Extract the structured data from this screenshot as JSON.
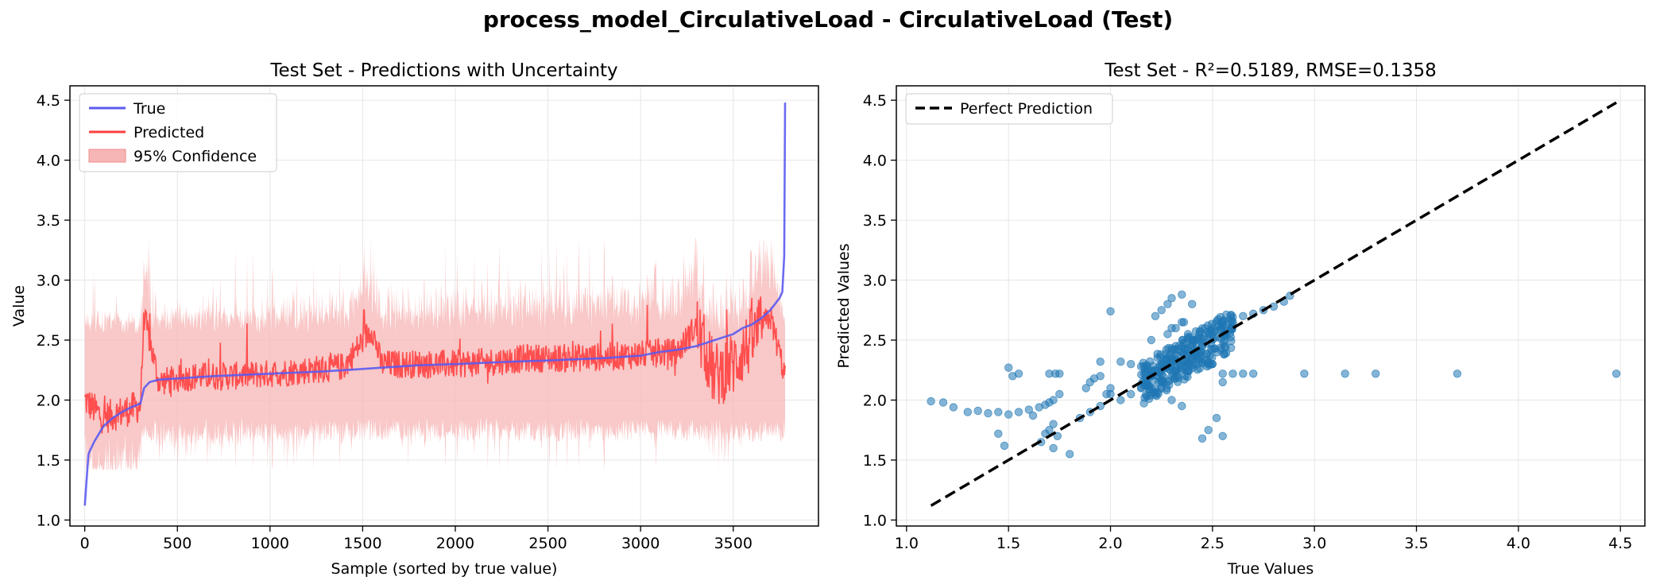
{
  "figure": {
    "suptitle": "process_model_CirculativeLoad - CirculativeLoad (Test)"
  },
  "colors": {
    "true_line": "#5b5bf0",
    "predicted_line": "#ff4040",
    "confidence_fill": "#f7b6b6",
    "scatter_points": "#1f77b4",
    "perfect_line": "#000000",
    "grid": "#e6e6e6"
  },
  "chart_data": [
    {
      "type": "line",
      "title": "Test Set - Predictions with Uncertainty",
      "xlabel": "Sample (sorted by true value)",
      "ylabel": "Value",
      "xlim": [
        -80,
        3960
      ],
      "ylim": [
        0.95,
        4.62
      ],
      "xticks": [
        0,
        500,
        1000,
        1500,
        2000,
        2500,
        3000,
        3500
      ],
      "yticks": [
        1.0,
        1.5,
        2.0,
        2.5,
        3.0,
        3.5,
        4.0,
        4.5
      ],
      "grid": true,
      "legend_position": "top-left",
      "n_samples": 3780,
      "series": [
        {
          "name": "True",
          "color": "#5b5bf0",
          "x": [
            0,
            20,
            50,
            100,
            150,
            200,
            250,
            300,
            320,
            350,
            400,
            500,
            700,
            1000,
            1300,
            1500,
            1800,
            2000,
            2300,
            2500,
            2800,
            3000,
            3100,
            3200,
            3300,
            3400,
            3500,
            3550,
            3600,
            3650,
            3700,
            3750,
            3765,
            3775,
            3780
          ],
          "values": [
            1.12,
            1.55,
            1.65,
            1.78,
            1.85,
            1.9,
            1.94,
            1.97,
            2.1,
            2.15,
            2.17,
            2.18,
            2.2,
            2.22,
            2.24,
            2.26,
            2.29,
            2.3,
            2.32,
            2.33,
            2.35,
            2.37,
            2.4,
            2.42,
            2.45,
            2.5,
            2.55,
            2.6,
            2.63,
            2.68,
            2.75,
            2.85,
            2.9,
            3.2,
            4.48
          ]
        },
        {
          "name": "Predicted",
          "color": "#ff4040",
          "x": [
            0,
            100,
            200,
            300,
            320,
            400,
            600,
            800,
            1000,
            1200,
            1400,
            1550,
            1600,
            1800,
            2000,
            2200,
            2400,
            2600,
            2800,
            3000,
            3200,
            3300,
            3400,
            3500,
            3600,
            3700,
            3780
          ],
          "values": [
            2.0,
            1.85,
            1.9,
            1.95,
            2.7,
            2.15,
            2.2,
            2.2,
            2.22,
            2.25,
            2.28,
            2.6,
            2.3,
            2.3,
            2.3,
            2.32,
            2.35,
            2.35,
            2.36,
            2.38,
            2.4,
            2.62,
            2.2,
            2.3,
            2.5,
            2.7,
            2.2
          ]
        }
      ],
      "confidence": {
        "name": "95% Confidence",
        "color": "#f7b6b6",
        "band_low_typical": 1.7,
        "band_high_typical": 2.7,
        "max": 3.35,
        "min": 1.42
      }
    },
    {
      "type": "scatter",
      "title": "Test Set - R²=0.5189, RMSE=0.1358",
      "xlabel": "True Values",
      "ylabel": "Predicted Values",
      "xlim": [
        0.95,
        4.62
      ],
      "ylim": [
        0.95,
        4.62
      ],
      "xticks": [
        1.0,
        1.5,
        2.0,
        2.5,
        3.0,
        3.5,
        4.0,
        4.5
      ],
      "yticks": [
        1.0,
        1.5,
        2.0,
        2.5,
        3.0,
        3.5,
        4.0,
        4.5
      ],
      "grid": true,
      "legend_position": "top-left",
      "reference_line": {
        "name": "Perfect Prediction",
        "x": [
          1.12,
          4.48
        ],
        "y": [
          1.12,
          4.48
        ],
        "style": "dashed",
        "color": "#000000"
      },
      "points": {
        "color": "#1f77b4",
        "x": [
          1.12,
          1.18,
          1.23,
          1.3,
          1.35,
          1.4,
          1.45,
          1.5,
          1.55,
          1.6,
          1.62,
          1.65,
          1.68,
          1.7,
          1.72,
          1.75,
          1.72,
          1.7,
          1.68,
          1.66,
          1.72,
          1.74,
          1.8,
          1.85,
          1.9,
          1.95,
          2.0,
          1.88,
          1.9,
          1.92,
          1.95,
          1.98,
          2.0,
          2.05,
          2.1,
          2.15,
          2.18,
          2.2,
          2.22,
          2.25,
          2.28,
          2.3,
          2.32,
          2.35,
          2.38,
          2.4,
          2.42,
          2.45,
          2.48,
          2.5,
          2.55,
          2.6,
          2.65,
          2.7,
          2.75,
          2.8,
          2.85,
          2.88,
          2.22,
          2.25,
          2.28,
          2.3,
          2.35,
          2.38,
          2.4,
          2.45,
          2.5,
          2.55,
          2.6,
          2.65,
          2.7,
          1.5,
          1.52,
          1.55,
          1.45,
          1.48,
          1.7,
          1.73,
          1.75,
          2.0,
          2.3,
          2.35,
          2.4,
          2.5,
          2.55,
          2.52,
          2.48,
          2.45,
          2.55,
          2.95,
          3.15,
          3.3,
          3.7,
          4.48,
          2.3,
          2.35,
          2.2,
          2.25,
          2.3,
          2.35,
          2.38,
          2.4,
          2.42,
          2.45,
          2.2,
          2.28,
          2.32,
          2.36,
          2.4,
          2.44,
          1.95,
          2.05,
          2.1,
          2.15
        ],
        "y": [
          1.99,
          1.98,
          1.94,
          1.9,
          1.91,
          1.89,
          1.9,
          1.88,
          1.9,
          1.92,
          1.87,
          1.94,
          1.96,
          1.98,
          2.0,
          2.05,
          1.8,
          1.75,
          1.72,
          1.65,
          1.6,
          1.7,
          1.55,
          1.85,
          1.9,
          1.95,
          2.05,
          2.1,
          2.15,
          2.18,
          2.2,
          2.05,
          2.1,
          2.0,
          2.05,
          2.1,
          2.15,
          2.2,
          2.25,
          2.28,
          2.3,
          2.35,
          2.38,
          2.4,
          2.42,
          2.45,
          2.5,
          2.48,
          2.55,
          2.6,
          2.62,
          2.65,
          2.7,
          2.72,
          2.75,
          2.78,
          2.82,
          2.87,
          2.7,
          2.75,
          2.8,
          2.6,
          2.65,
          2.55,
          2.5,
          2.45,
          2.3,
          2.22,
          2.22,
          2.22,
          2.22,
          2.27,
          2.2,
          2.22,
          1.72,
          1.62,
          2.22,
          2.22,
          2.22,
          2.74,
          2.85,
          2.88,
          2.8,
          2.3,
          2.15,
          1.85,
          1.75,
          1.68,
          1.7,
          2.22,
          2.22,
          2.22,
          2.22,
          2.22,
          2.0,
          1.95,
          2.1,
          2.15,
          2.2,
          2.25,
          2.3,
          2.35,
          2.4,
          2.45,
          2.5,
          2.55,
          2.6,
          2.65,
          2.4,
          2.35,
          2.32,
          2.32,
          2.3,
          2.28
        ]
      }
    }
  ]
}
